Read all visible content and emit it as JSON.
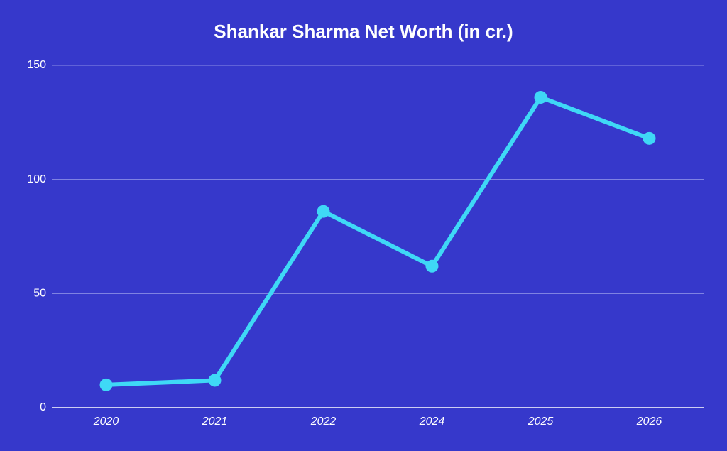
{
  "chart_data": {
    "type": "line",
    "title": "Shankar Sharma Net Worth (in cr.)",
    "categories": [
      "2020",
      "2021",
      "2022",
      "2024",
      "2025",
      "2026"
    ],
    "series": [
      {
        "color": "#3fd8f6",
        "values": [
          10,
          12,
          86,
          62,
          136,
          118
        ]
      }
    ],
    "ylim": [
      0,
      150
    ],
    "yticks": [
      0,
      50,
      100,
      150
    ],
    "grid": true
  }
}
